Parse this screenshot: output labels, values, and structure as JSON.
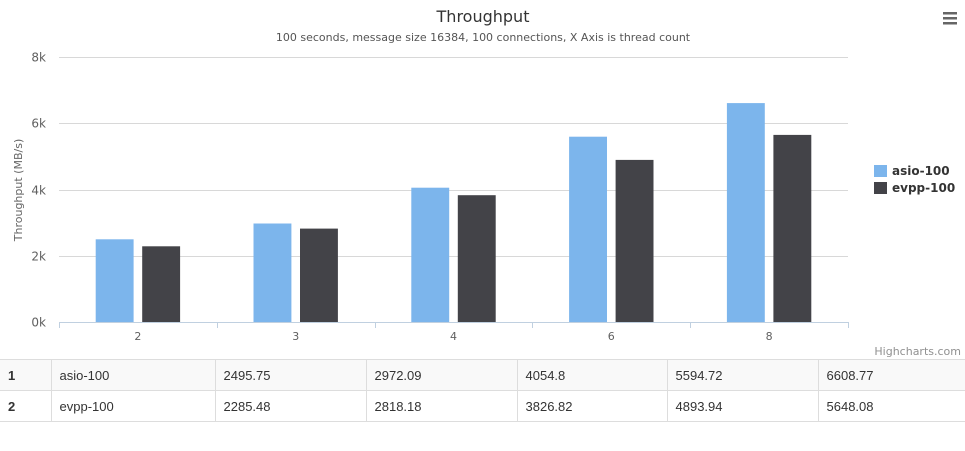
{
  "chart_data": {
    "type": "bar",
    "title": "Throughput",
    "subtitle": "100 seconds, message size 16384, 100 connections, X Axis is thread count",
    "xlabel": "",
    "ylabel": "Throughput (MB/s)",
    "categories": [
      "2",
      "3",
      "4",
      "6",
      "8"
    ],
    "y_ticks": [
      "0k",
      "2k",
      "4k",
      "6k",
      "8k"
    ],
    "ylim": [
      0,
      8000
    ],
    "legend_position": "right",
    "grid": true,
    "series": [
      {
        "name": "asio-100",
        "color": "#7cb5ec",
        "values": [
          2495.75,
          2972.09,
          4054.8,
          5594.72,
          6608.77
        ]
      },
      {
        "name": "evpp-100",
        "color": "#434348",
        "values": [
          2285.48,
          2818.18,
          3826.82,
          4893.94,
          5648.08
        ]
      }
    ]
  },
  "credits": "Highcharts.com",
  "menu_icon": "hamburger-menu-icon",
  "table": {
    "rows": [
      {
        "index": "1",
        "name": "asio-100",
        "values": [
          "2495.75",
          "2972.09",
          "4054.8",
          "5594.72",
          "6608.77"
        ]
      },
      {
        "index": "2",
        "name": "evpp-100",
        "values": [
          "2285.48",
          "2818.18",
          "3826.82",
          "4893.94",
          "5648.08"
        ]
      }
    ]
  }
}
